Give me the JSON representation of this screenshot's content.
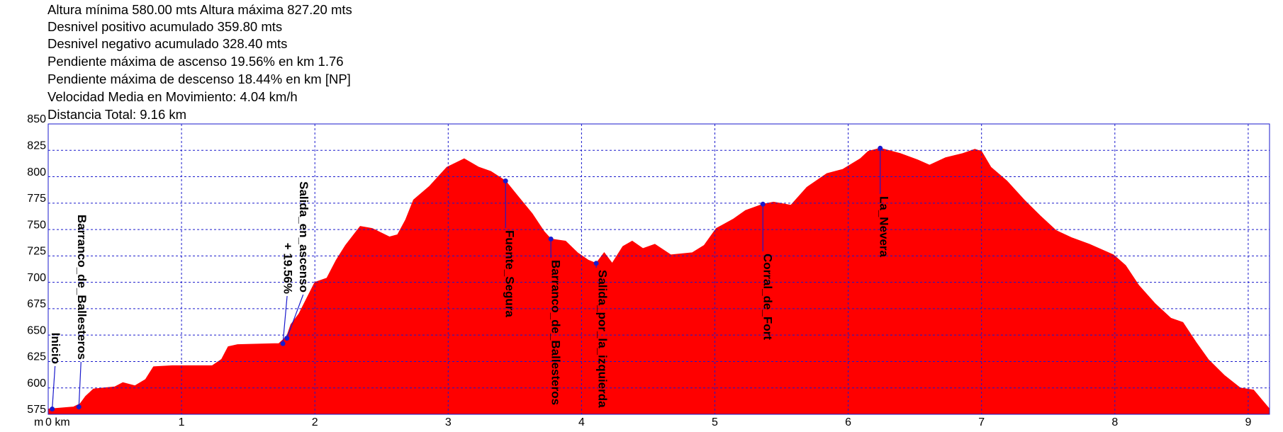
{
  "chart_data": {
    "type": "area",
    "header_lines": [
      "Altura mínima  580.00 mts   Altura máxima 827.20 mts",
      "Desnivel positivo acumulado 359.80 mts",
      "Desnivel negativo acumulado 328.40 mts",
      "Pendiente máxima de ascenso  19.56% en km 1.76",
      "Pendiente máxima de descenso 18.44%  en km [NP]",
      "Velocidad Media en Movimiento: 4.04 km/h",
      "Distancia Total: 9.16 km"
    ],
    "ylabel": "m",
    "color": "#ff0000",
    "grid": true,
    "grid_color": "#1a1acc",
    "xlim": [
      0,
      9.16
    ],
    "ylim": [
      575,
      850
    ],
    "xticks": [
      {
        "value": 0,
        "label": "0 km"
      },
      1,
      2,
      3,
      4,
      5,
      6,
      7,
      8,
      9
    ],
    "yticks": [
      575,
      600,
      625,
      650,
      675,
      700,
      725,
      750,
      775,
      800,
      825,
      850
    ],
    "x": [
      0,
      0.19,
      0.24,
      0.28,
      0.34,
      0.5,
      0.56,
      0.65,
      0.73,
      0.79,
      0.93,
      1.23,
      1.3,
      1.35,
      1.42,
      1.73,
      1.79,
      1.82,
      1.88,
      1.94,
      2.0,
      2.09,
      2.16,
      2.23,
      2.34,
      2.43,
      2.56,
      2.62,
      2.68,
      2.74,
      2.86,
      2.99,
      3.12,
      3.23,
      3.32,
      3.43,
      3.52,
      3.63,
      3.72,
      3.77,
      3.88,
      3.97,
      4.05,
      4.11,
      4.17,
      4.23,
      4.31,
      4.38,
      4.46,
      4.55,
      4.67,
      4.83,
      4.92,
      5.01,
      5.14,
      5.23,
      5.36,
      5.44,
      5.57,
      5.69,
      5.84,
      5.96,
      6.09,
      6.15,
      6.24,
      6.39,
      6.52,
      6.61,
      6.73,
      6.86,
      6.95,
      7.0,
      7.07,
      7.19,
      7.32,
      7.44,
      7.56,
      7.68,
      7.81,
      7.99,
      8.08,
      8.18,
      8.3,
      8.42,
      8.51,
      8.61,
      8.7,
      8.82,
      8.94,
      9.04,
      9.16
    ],
    "values": [
      580,
      582,
      585,
      592,
      599,
      601,
      605,
      602,
      608,
      620,
      621,
      621,
      627,
      639,
      641,
      642,
      649,
      660,
      670,
      685,
      700,
      704,
      721,
      735,
      753,
      751,
      743,
      745,
      759,
      778,
      791,
      809,
      817,
      809,
      805,
      796,
      782,
      765,
      748,
      741,
      739,
      728,
      721,
      718,
      728,
      718,
      734,
      739,
      732,
      736,
      726,
      728,
      735,
      751,
      760,
      768,
      774,
      776,
      773,
      790,
      803,
      807,
      817,
      824,
      827,
      822,
      816,
      811,
      818,
      822,
      826,
      824,
      809,
      796,
      778,
      763,
      749,
      742,
      736,
      726,
      716,
      697,
      680,
      666,
      662,
      643,
      627,
      612,
      600,
      598,
      580
    ],
    "waypoints": [
      {
        "label": "Inicio",
        "x": 0.03,
        "y": 580
      },
      {
        "label": "Barranco_de_Ballesteros",
        "x": 0.23,
        "y": 582
      },
      {
        "label": "+ 19.56%",
        "x": 1.76,
        "y": 642
      },
      {
        "label": "Salida_en_ascenso",
        "x": 1.79,
        "y": 647
      },
      {
        "label": "Fuente_Segura",
        "x": 3.43,
        "y": 796
      },
      {
        "label": "Barranco_de_Ballesteros",
        "x": 3.77,
        "y": 741
      },
      {
        "label": "Salida_por_la_izquierda",
        "x": 4.11,
        "y": 718
      },
      {
        "label": "Corral_de_Fort",
        "x": 5.36,
        "y": 774
      },
      {
        "label": "La_Nevera",
        "x": 6.24,
        "y": 827
      }
    ],
    "marker_color": "#1a1acc"
  }
}
